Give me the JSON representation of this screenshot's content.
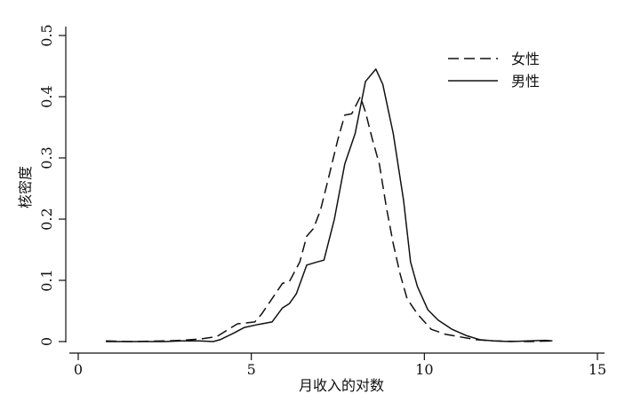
{
  "chart_data": {
    "type": "line",
    "xlabel": "月收入的对数",
    "ylabel": "核密度",
    "xlim": [
      0,
      15
    ],
    "ylim": [
      0,
      0.5
    ],
    "x_ticks": [
      0,
      5,
      10,
      15
    ],
    "y_ticks": [
      0,
      0.1,
      0.2,
      0.3,
      0.4,
      0.5
    ],
    "x_tick_labels": [
      "0",
      "5",
      "10",
      "15"
    ],
    "y_tick_labels": [
      "0",
      "0.1",
      "0.2",
      "0.3",
      "0.4",
      "0.5"
    ],
    "grid": false,
    "legend_position": "top-right",
    "series": [
      {
        "name": "女性",
        "style": "dashed",
        "color": "#111111",
        "points": [
          [
            0.8,
            0.001
          ],
          [
            1.5,
            0.0
          ],
          [
            2.5,
            0.001
          ],
          [
            3.0,
            0.002
          ],
          [
            3.5,
            0.004
          ],
          [
            4.0,
            0.008
          ],
          [
            4.2,
            0.015
          ],
          [
            4.6,
            0.029
          ],
          [
            5.1,
            0.032
          ],
          [
            5.3,
            0.045
          ],
          [
            5.6,
            0.07
          ],
          [
            5.9,
            0.095
          ],
          [
            6.1,
            0.098
          ],
          [
            6.4,
            0.13
          ],
          [
            6.6,
            0.172
          ],
          [
            6.8,
            0.185
          ],
          [
            7.0,
            0.215
          ],
          [
            7.2,
            0.26
          ],
          [
            7.5,
            0.33
          ],
          [
            7.7,
            0.37
          ],
          [
            7.9,
            0.372
          ],
          [
            8.15,
            0.4
          ],
          [
            8.3,
            0.375
          ],
          [
            8.5,
            0.33
          ],
          [
            8.7,
            0.29
          ],
          [
            8.9,
            0.22
          ],
          [
            9.1,
            0.16
          ],
          [
            9.3,
            0.11
          ],
          [
            9.5,
            0.07
          ],
          [
            9.8,
            0.045
          ],
          [
            10.2,
            0.02
          ],
          [
            10.6,
            0.012
          ],
          [
            11.0,
            0.008
          ],
          [
            11.5,
            0.003
          ],
          [
            12.0,
            0.001
          ],
          [
            13.0,
            0.0
          ],
          [
            13.7,
            0.001
          ]
        ]
      },
      {
        "name": "男性",
        "style": "solid",
        "color": "#111111",
        "points": [
          [
            0.8,
            0.0
          ],
          [
            1.5,
            0.0
          ],
          [
            2.5,
            0.0
          ],
          [
            3.0,
            0.001
          ],
          [
            3.5,
            0.001
          ],
          [
            3.9,
            0.0
          ],
          [
            4.1,
            0.003
          ],
          [
            4.5,
            0.014
          ],
          [
            4.8,
            0.023
          ],
          [
            5.2,
            0.028
          ],
          [
            5.6,
            0.032
          ],
          [
            5.9,
            0.055
          ],
          [
            6.1,
            0.062
          ],
          [
            6.3,
            0.078
          ],
          [
            6.6,
            0.125
          ],
          [
            6.9,
            0.13
          ],
          [
            7.1,
            0.133
          ],
          [
            7.4,
            0.2
          ],
          [
            7.7,
            0.29
          ],
          [
            8.0,
            0.34
          ],
          [
            8.3,
            0.425
          ],
          [
            8.6,
            0.445
          ],
          [
            8.8,
            0.42
          ],
          [
            9.1,
            0.34
          ],
          [
            9.4,
            0.23
          ],
          [
            9.6,
            0.13
          ],
          [
            9.8,
            0.09
          ],
          [
            10.1,
            0.052
          ],
          [
            10.4,
            0.035
          ],
          [
            10.8,
            0.02
          ],
          [
            11.2,
            0.01
          ],
          [
            11.6,
            0.003
          ],
          [
            12.0,
            0.001
          ],
          [
            12.5,
            0.0
          ],
          [
            13.0,
            0.001
          ],
          [
            13.5,
            0.002
          ],
          [
            13.7,
            0.001
          ]
        ]
      }
    ]
  }
}
